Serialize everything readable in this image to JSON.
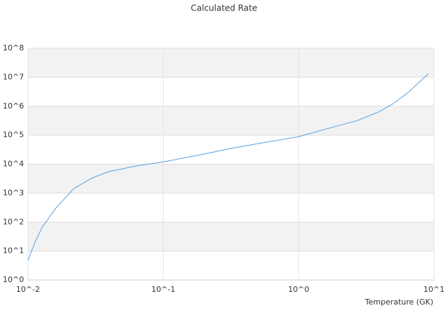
{
  "chart_data": {
    "type": "line",
    "title": "Calculated Rate",
    "x_label": "Temperature (GK)",
    "x": [
      0.01,
      0.0113,
      0.0127,
      0.0161,
      0.0217,
      0.0292,
      0.0393,
      0.0634,
      0.1,
      0.197,
      0.316,
      0.57,
      1.0,
      1.67,
      2.71,
      3.88,
      4.9,
      6.56,
      9.1
    ],
    "series": [
      {
        "name": "Rate",
        "color": "#5a9fe0",
        "values": [
          4.8,
          21,
          65,
          310,
          1400,
          3200,
          5500,
          8700,
          12000,
          22000,
          35000,
          57000,
          89000,
          174000,
          320000,
          630000,
          1150000,
          3200000,
          13500000
        ]
      }
    ],
    "xlim": [
      0.01,
      10
    ],
    "ylim": [
      1,
      100000000
    ],
    "log_x": true,
    "log_y": true,
    "grid": true,
    "band_color": "#f2f2f2",
    "xticks": [
      {
        "value": 0.01,
        "label": "10^-2"
      },
      {
        "value": 0.1,
        "label": "10^-1"
      },
      {
        "value": 1,
        "label": "10^0"
      },
      {
        "value": 10,
        "label": "10^1"
      }
    ],
    "yticks": [
      {
        "value": 1,
        "label": "10^0"
      },
      {
        "value": 10,
        "label": "10^1"
      },
      {
        "value": 100,
        "label": "10^2"
      },
      {
        "value": 1000,
        "label": "10^3"
      },
      {
        "value": 10000,
        "label": "10^4"
      },
      {
        "value": 100000,
        "label": "10^5"
      },
      {
        "value": 1000000,
        "label": "10^6"
      },
      {
        "value": 10000000,
        "label": "10^7"
      },
      {
        "value": 100000000,
        "label": "10^8"
      }
    ]
  }
}
